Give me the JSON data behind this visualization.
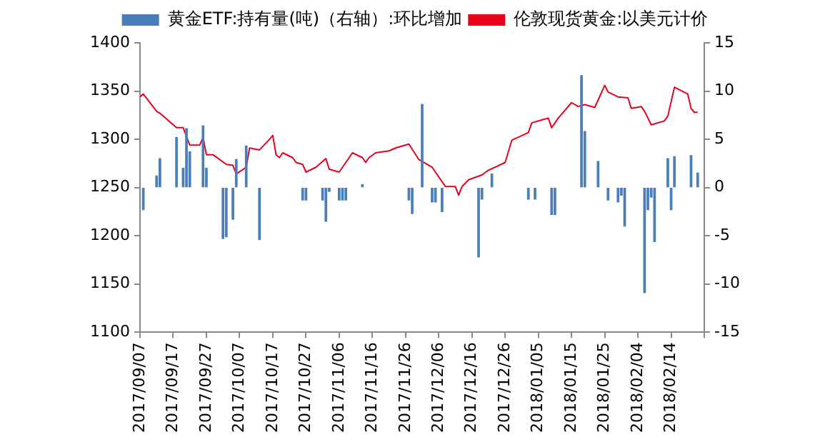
{
  "chart_data": {
    "type": "line",
    "legend": "top",
    "grid": false,
    "marker": "none",
    "xlim": [
      "2017-09-07",
      "2018-02-24"
    ],
    "xticks": [
      {
        "value": "2017-09-07",
        "label": "2017/09/07"
      },
      {
        "value": "2017-09-17",
        "label": "2017/09/17"
      },
      {
        "value": "2017-09-27",
        "label": "2017/09/27"
      },
      {
        "value": "2017-10-07",
        "label": "2017/10/07"
      },
      {
        "value": "2017-10-17",
        "label": "2017/10/17"
      },
      {
        "value": "2017-10-27",
        "label": "2017/10/27"
      },
      {
        "value": "2017-11-06",
        "label": "2017/11/06"
      },
      {
        "value": "2017-11-16",
        "label": "2017/11/16"
      },
      {
        "value": "2017-11-26",
        "label": "2017/11/26"
      },
      {
        "value": "2017-12-06",
        "label": "2017/12/06"
      },
      {
        "value": "2017-12-16",
        "label": "2017/12/16"
      },
      {
        "value": "2017-12-26",
        "label": "2017/12/26"
      },
      {
        "value": "2018-01-05",
        "label": "2018/01/05"
      },
      {
        "value": "2018-01-15",
        "label": "2018/01/15"
      },
      {
        "value": "2018-01-25",
        "label": "2018/01/25"
      },
      {
        "value": "2018-02-04",
        "label": "2018/02/04"
      },
      {
        "value": "2018-02-14",
        "label": "2018/02/14"
      },
      {
        "value": "2018-02-24",
        "label": null
      }
    ],
    "ylim": [
      1100,
      1400
    ],
    "yticks": [
      1100,
      1150,
      1200,
      1250,
      1300,
      1350,
      1400
    ],
    "y2lim": [
      -15,
      15
    ],
    "y2ticks": [
      -15,
      -10,
      -5,
      0,
      5,
      10,
      15
    ],
    "series": [
      {
        "name": "黄金ETF:持有量(吨)（右轴）:环比增加",
        "type": "bar",
        "axis": "y2",
        "color": "#4a7ebb",
        "x": [
          "2017-09-08",
          "2017-09-12",
          "2017-09-13",
          "2017-09-18",
          "2017-09-20",
          "2017-09-21",
          "2017-09-22",
          "2017-09-26",
          "2017-09-27",
          "2017-10-02",
          "2017-10-03",
          "2017-10-05",
          "2017-10-06",
          "2017-10-09",
          "2017-10-13",
          "2017-10-26",
          "2017-10-27",
          "2017-11-01",
          "2017-11-02",
          "2017-11-03",
          "2017-11-06",
          "2017-11-07",
          "2017-11-08",
          "2017-11-13",
          "2017-11-27",
          "2017-11-28",
          "2017-12-01",
          "2017-12-04",
          "2017-12-05",
          "2017-12-07",
          "2017-12-18",
          "2017-12-19",
          "2017-12-22",
          "2018-01-02",
          "2018-01-04",
          "2018-01-09",
          "2018-01-10",
          "2018-01-18",
          "2018-01-19",
          "2018-01-23",
          "2018-01-26",
          "2018-01-29",
          "2018-01-30",
          "2018-01-31",
          "2018-02-06",
          "2018-02-07",
          "2018-02-08",
          "2018-02-09",
          "2018-02-13",
          "2018-02-14",
          "2018-02-15",
          "2018-02-20",
          "2018-02-22"
        ],
        "values": [
          -2.3,
          1.2,
          3.0,
          5.2,
          2.0,
          6.1,
          3.7,
          6.4,
          2.0,
          -5.3,
          -5.1,
          -3.3,
          2.9,
          4.3,
          -5.4,
          -1.3,
          -1.3,
          -1.3,
          -3.5,
          -0.4,
          -1.3,
          -1.3,
          -1.3,
          0.3,
          -1.3,
          -2.7,
          8.6,
          -1.5,
          -1.5,
          -2.5,
          -7.2,
          -1.2,
          1.4,
          -1.2,
          -1.2,
          -2.8,
          -2.8,
          11.6,
          5.8,
          2.7,
          -1.3,
          -1.5,
          -0.8,
          -4.0,
          -10.9,
          -2.3,
          -1.0,
          -5.6,
          3.0,
          -2.3,
          3.2,
          3.3,
          1.5
        ]
      },
      {
        "name": "伦敦现货黄金:以美元计价",
        "color": "#e8001c",
        "x": [
          "2017-09-07",
          "2017-09-08",
          "2017-09-12",
          "2017-09-13",
          "2017-09-18",
          "2017-09-20",
          "2017-09-22",
          "2017-09-25",
          "2017-09-26",
          "2017-09-27",
          "2017-09-29",
          "2017-10-03",
          "2017-10-05",
          "2017-10-06",
          "2017-10-09",
          "2017-10-10",
          "2017-10-13",
          "2017-10-16",
          "2017-10-17",
          "2017-10-18",
          "2017-10-19",
          "2017-10-20",
          "2017-10-23",
          "2017-10-24",
          "2017-10-26",
          "2017-10-27",
          "2017-10-30",
          "2017-11-02",
          "2017-11-03",
          "2017-11-06",
          "2017-11-10",
          "2017-11-13",
          "2017-11-14",
          "2017-11-15",
          "2017-11-17",
          "2017-11-21",
          "2017-11-23",
          "2017-11-27",
          "2017-11-30",
          "2017-12-04",
          "2017-12-08",
          "2017-12-11",
          "2017-12-12",
          "2017-12-13",
          "2017-12-15",
          "2017-12-19",
          "2017-12-21",
          "2017-12-26",
          "2017-12-28",
          "2018-01-02",
          "2018-01-03",
          "2018-01-08",
          "2018-01-09",
          "2018-01-11",
          "2018-01-15",
          "2018-01-17",
          "2018-01-19",
          "2018-01-22",
          "2018-01-25",
          "2018-01-26",
          "2018-01-29",
          "2018-02-01",
          "2018-02-02",
          "2018-02-05",
          "2018-02-06",
          "2018-02-08",
          "2018-02-12",
          "2018-02-13",
          "2018-02-15",
          "2018-02-19",
          "2018-02-20",
          "2018-02-21",
          "2018-02-22"
        ],
        "values": [
          1344,
          1347,
          1329,
          1327,
          1312,
          1312,
          1294,
          1294,
          1302,
          1284,
          1284,
          1274,
          1273,
          1264,
          1271,
          1291,
          1289,
          1300,
          1304,
          1284,
          1281,
          1286,
          1281,
          1276,
          1274,
          1266,
          1271,
          1280,
          1269,
          1266,
          1286,
          1281,
          1276,
          1281,
          1286,
          1288,
          1291,
          1295,
          1279,
          1271,
          1251,
          1251,
          1242,
          1251,
          1258,
          1263,
          1268,
          1276,
          1299,
          1307,
          1317,
          1322,
          1312,
          1322,
          1338,
          1334,
          1336,
          1333,
          1356,
          1349,
          1344,
          1343,
          1332,
          1334,
          1329,
          1315,
          1319,
          1324,
          1354,
          1347,
          1332,
          1328,
          1328
        ]
      }
    ]
  }
}
